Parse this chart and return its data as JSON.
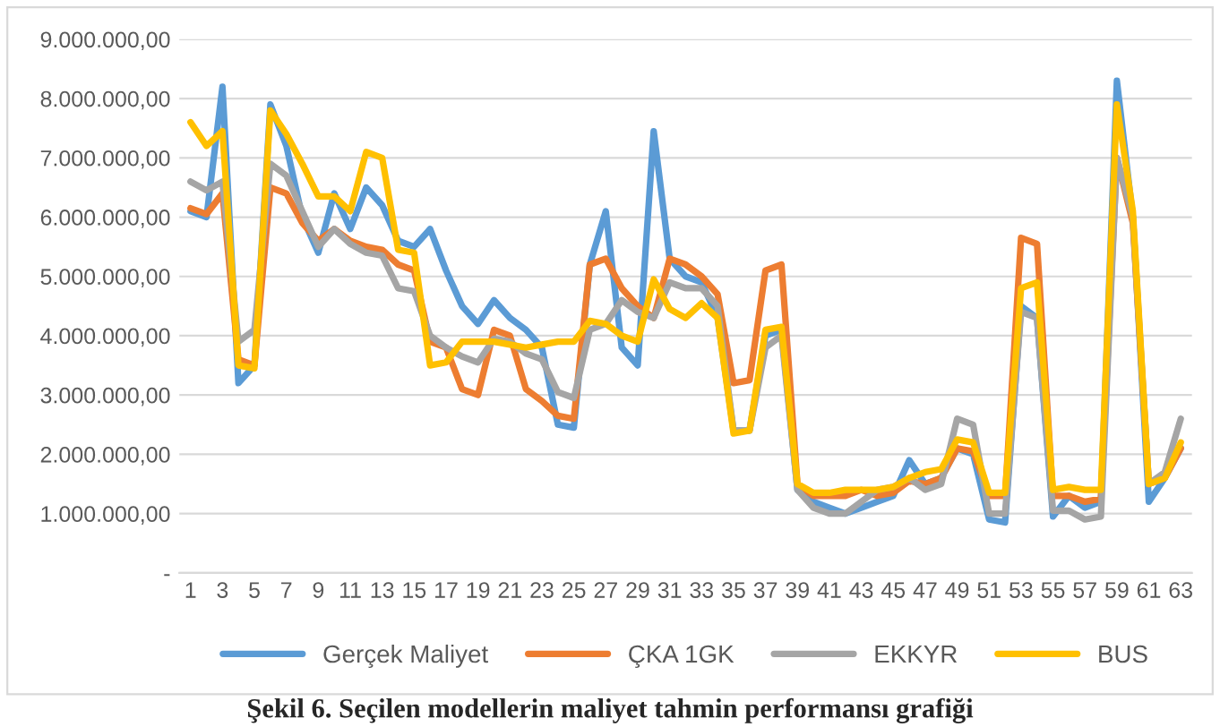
{
  "chart_data": {
    "type": "line",
    "categories": [
      "1",
      null,
      "3",
      null,
      "5",
      null,
      "7",
      null,
      "9",
      null,
      "11",
      null,
      "13",
      null,
      "15",
      null,
      "17",
      null,
      "19",
      null,
      "21",
      null,
      "23",
      null,
      "25",
      null,
      "27",
      null,
      "29",
      null,
      "31",
      null,
      "33",
      null,
      "35",
      null,
      "37",
      null,
      "39",
      null,
      "41",
      null,
      "43",
      null,
      "45",
      null,
      "47",
      null,
      "49",
      null,
      "51",
      null,
      "53",
      null,
      "55",
      null,
      "57",
      null,
      "59",
      null,
      "61",
      null,
      "63"
    ],
    "series": [
      {
        "name": "Gerçek Maliyet",
        "color": "#5b9bd5",
        "values": [
          6100000,
          6000000,
          8200000,
          3200000,
          3500000,
          7900000,
          7200000,
          6000000,
          5400000,
          6400000,
          5800000,
          6500000,
          6200000,
          5600000,
          5500000,
          5800000,
          5100000,
          4500000,
          4200000,
          4600000,
          4300000,
          4100000,
          3800000,
          2500000,
          2450000,
          5200000,
          6100000,
          3800000,
          3500000,
          7450000,
          5300000,
          5000000,
          4900000,
          4300000,
          2400000,
          2400000,
          4000000,
          4100000,
          1400000,
          1200000,
          1100000,
          1000000,
          1100000,
          1200000,
          1300000,
          1900000,
          1500000,
          1600000,
          2100000,
          2000000,
          900000,
          850000,
          4500000,
          4300000,
          950000,
          1300000,
          1100000,
          1200000,
          8300000,
          6000000,
          1200000,
          1600000,
          2100000
        ]
      },
      {
        "name": "ÇKA 1GK",
        "color": "#ed7d31",
        "values": [
          6150000,
          6050000,
          6400000,
          3600000,
          3500000,
          6500000,
          6400000,
          5900000,
          5600000,
          5800000,
          5600000,
          5500000,
          5450000,
          5200000,
          5100000,
          3900000,
          3800000,
          3100000,
          3000000,
          4100000,
          4000000,
          3100000,
          2900000,
          2650000,
          2600000,
          5200000,
          5300000,
          4800000,
          4500000,
          4300000,
          5300000,
          5200000,
          5000000,
          4700000,
          3200000,
          3250000,
          5100000,
          5200000,
          1500000,
          1300000,
          1300000,
          1300000,
          1400000,
          1300000,
          1350000,
          1550000,
          1500000,
          1600000,
          2100000,
          2050000,
          1300000,
          1300000,
          5650000,
          5550000,
          1300000,
          1300000,
          1200000,
          1250000,
          7000000,
          5900000,
          1500000,
          1600000,
          2100000
        ]
      },
      {
        "name": "EKKYR",
        "color": "#a5a5a5",
        "values": [
          6600000,
          6450000,
          6600000,
          3900000,
          4100000,
          6900000,
          6700000,
          6100000,
          5500000,
          5800000,
          5550000,
          5400000,
          5350000,
          4800000,
          4750000,
          4000000,
          3800000,
          3650000,
          3550000,
          3950000,
          3900000,
          3700000,
          3600000,
          3050000,
          2950000,
          4100000,
          4200000,
          4600000,
          4400000,
          4300000,
          4900000,
          4800000,
          4800000,
          4500000,
          2400000,
          2400000,
          3800000,
          4000000,
          1400000,
          1100000,
          1000000,
          1000000,
          1200000,
          1400000,
          1450000,
          1600000,
          1400000,
          1500000,
          2600000,
          2500000,
          1000000,
          1000000,
          4400000,
          4300000,
          1050000,
          1050000,
          900000,
          950000,
          7000000,
          6000000,
          1500000,
          1700000,
          2600000
        ]
      },
      {
        "name": "BUS",
        "color": "#ffc000",
        "values": [
          7600000,
          7200000,
          7450000,
          3500000,
          3450000,
          7800000,
          7400000,
          6900000,
          6350000,
          6350000,
          6100000,
          7100000,
          7000000,
          5450000,
          5400000,
          3500000,
          3550000,
          3900000,
          3900000,
          3900000,
          3850000,
          3800000,
          3850000,
          3900000,
          3900000,
          4250000,
          4200000,
          4000000,
          3900000,
          4950000,
          4450000,
          4300000,
          4550000,
          4300000,
          2350000,
          2400000,
          4100000,
          4150000,
          1500000,
          1350000,
          1350000,
          1400000,
          1400000,
          1400000,
          1450000,
          1600000,
          1700000,
          1750000,
          2250000,
          2200000,
          1350000,
          1350000,
          4800000,
          4900000,
          1400000,
          1450000,
          1400000,
          1400000,
          7900000,
          6100000,
          1500000,
          1600000,
          2200000
        ]
      }
    ],
    "ylim": [
      0,
      9000000
    ],
    "yticks": [
      {
        "value": 0,
        "label": "-"
      },
      {
        "value": 1000000,
        "label": "1.000.000,00"
      },
      {
        "value": 2000000,
        "label": "2.000.000,00"
      },
      {
        "value": 3000000,
        "label": "3.000.000,00"
      },
      {
        "value": 4000000,
        "label": "4.000.000,00"
      },
      {
        "value": 5000000,
        "label": "5.000.000,00"
      },
      {
        "value": 6000000,
        "label": "6.000.000,00"
      },
      {
        "value": 7000000,
        "label": "7.000.000,00"
      },
      {
        "value": 8000000,
        "label": "8.000.000,00"
      },
      {
        "value": 9000000,
        "label": "9.000.000,00"
      }
    ],
    "grid": "y",
    "legend": "bottom",
    "marker": "none",
    "line_style": "solid",
    "annotations": [
      "Şekil 6. Seçilen modellerin maliyet tahmin performansı grafiği"
    ]
  }
}
